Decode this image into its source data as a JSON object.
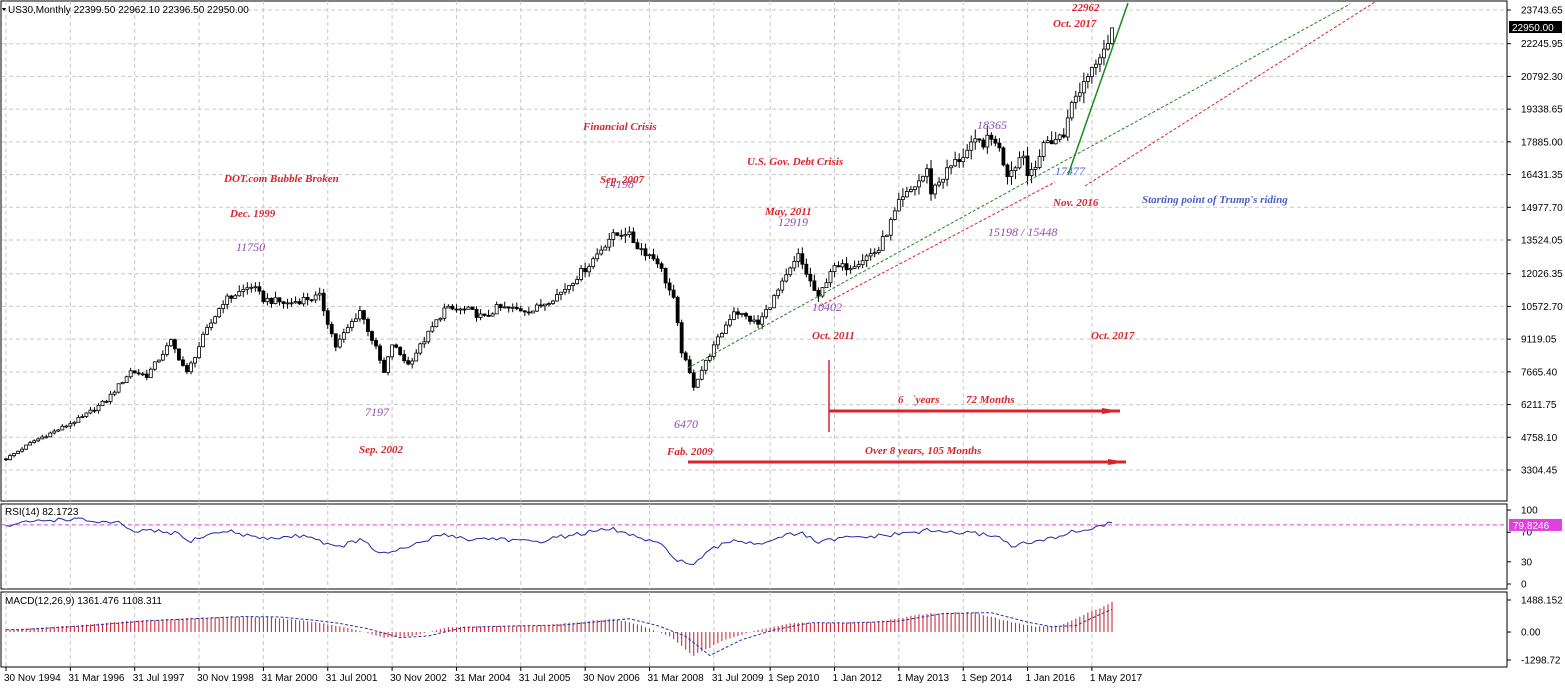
{
  "header": {
    "symbol_line": "US30,Monthly  22399.50 22962.10 22396.50 22950.00",
    "rsi_label": "RSI(14) 82.1723",
    "macd_label": "MACD(12,26,9) 1361.476 1108.311",
    "price_marker": "22950.00",
    "rsi_marker": "79.8246"
  },
  "colors": {
    "bull_candle": "#ffffff",
    "bear_candle": "#000000",
    "rsi_line": "#1f2aa8",
    "rsi_level": "#e040e0",
    "macd_hist": "#d22a3a",
    "macd_signal": "#2233aa",
    "annot_red": "#d9232d",
    "annot_purple": "#8e4bb0",
    "trend_green": "#1a8a1a",
    "trend_red": "#d9232d"
  },
  "chart_data": [
    {
      "type": "candlestick",
      "title": "US30,Monthly",
      "x_ticks": [
        "30 Nov 1994",
        "31 Mar 1996",
        "31 Jul 1997",
        "30 Nov 1998",
        "31 Mar 2000",
        "31 Jul 2001",
        "30 Nov 2002",
        "31 Mar 2004",
        "31 Jul 2005",
        "30 Nov 2006",
        "31 Mar 2008",
        "31 Jul 2009",
        "1 Sep 2010",
        "1 Jan 2012",
        "1 May 2013",
        "1 Sep 2014",
        "1 Jan 2016",
        "1 May 2017"
      ],
      "y_ticks": [
        "23743.65",
        "22245.95",
        "20792.30",
        "19338.65",
        "17885.00",
        "16431.35",
        "14977.70",
        "13524.05",
        "12026.35",
        "10572.70",
        "9119.05",
        "7665.40",
        "6211.75",
        "4758.10",
        "3304.45"
      ],
      "ylim": [
        3304.45,
        24100
      ],
      "x_range": [
        "1994-11",
        "2017-10"
      ],
      "last_price": 22950.0,
      "anchors": [
        [
          "1994-11",
          3800
        ],
        [
          "1995-06",
          4600
        ],
        [
          "1995-12",
          5100
        ],
        [
          "1996-06",
          5650
        ],
        [
          "1996-12",
          6400
        ],
        [
          "1997-06",
          7700
        ],
        [
          "1997-10",
          7500
        ],
        [
          "1998-04",
          9000
        ],
        [
          "1998-08",
          7600
        ],
        [
          "1998-12",
          9200
        ],
        [
          "1999-05",
          10800
        ],
        [
          "1999-12",
          11497
        ],
        [
          "2000-03",
          10900
        ],
        [
          "2000-09",
          10700
        ],
        [
          "2001-01",
          10900
        ],
        [
          "2001-05",
          11000
        ],
        [
          "2001-09",
          8800
        ],
        [
          "2002-03",
          10400
        ],
        [
          "2002-07",
          8700
        ],
        [
          "2002-09",
          7600
        ],
        [
          "2002-11",
          8900
        ],
        [
          "2003-03",
          7990
        ],
        [
          "2003-12",
          10450
        ],
        [
          "2004-06",
          10400
        ],
        [
          "2004-10",
          10050
        ],
        [
          "2005-01",
          10500
        ],
        [
          "2005-10",
          10400
        ],
        [
          "2006-05",
          11200
        ],
        [
          "2006-12",
          12450
        ],
        [
          "2007-05",
          13600
        ],
        [
          "2007-09",
          13900
        ],
        [
          "2007-12",
          13260
        ],
        [
          "2008-05",
          12600
        ],
        [
          "2008-09",
          10850
        ],
        [
          "2008-11",
          8600
        ],
        [
          "2009-02",
          7060
        ],
        [
          "2009-06",
          8450
        ],
        [
          "2009-12",
          10400
        ],
        [
          "2010-06",
          9780
        ],
        [
          "2010-12",
          11550
        ],
        [
          "2011-04",
          12800
        ],
        [
          "2011-09",
          10900
        ],
        [
          "2011-12",
          12200
        ],
        [
          "2012-05",
          12400
        ],
        [
          "2012-12",
          13100
        ],
        [
          "2013-05",
          15100
        ],
        [
          "2013-12",
          16570
        ],
        [
          "2014-01",
          15700
        ],
        [
          "2014-06",
          16800
        ],
        [
          "2014-12",
          17800
        ],
        [
          "2015-05",
          18000
        ],
        [
          "2015-08",
          16500
        ],
        [
          "2015-12",
          17400
        ],
        [
          "2016-01",
          16400
        ],
        [
          "2016-06",
          17900
        ],
        [
          "2016-10",
          18150
        ],
        [
          "2016-11",
          19150
        ],
        [
          "2017-01",
          19850
        ],
        [
          "2017-04",
          20900
        ],
        [
          "2017-07",
          21900
        ],
        [
          "2017-09",
          22400
        ],
        [
          "2017-10",
          22950
        ]
      ]
    },
    {
      "type": "line",
      "title": "RSI(14) 82.1723",
      "y_ticks": [
        "100",
        "70",
        "30",
        "0"
      ],
      "ylim": [
        0,
        100
      ],
      "level": 79.8246,
      "anchors": [
        [
          "1994-11",
          78
        ],
        [
          "1995-06",
          85
        ],
        [
          "1996-03",
          88
        ],
        [
          "1996-10",
          84
        ],
        [
          "1997-03",
          82
        ],
        [
          "1997-06",
          71
        ],
        [
          "1997-10",
          72
        ],
        [
          "1998-06",
          68
        ],
        [
          "1998-08",
          57
        ],
        [
          "1999-01",
          66
        ],
        [
          "1999-06",
          72
        ],
        [
          "2000-03",
          61
        ],
        [
          "2001-02",
          66
        ],
        [
          "2001-09",
          49
        ],
        [
          "2002-03",
          60
        ],
        [
          "2002-07",
          45
        ],
        [
          "2002-10",
          40
        ],
        [
          "2003-04",
          52
        ],
        [
          "2003-12",
          68
        ],
        [
          "2004-06",
          60
        ],
        [
          "2005-01",
          62
        ],
        [
          "2005-10",
          56
        ],
        [
          "2006-05",
          64
        ],
        [
          "2006-12",
          70
        ],
        [
          "2007-06",
          74
        ],
        [
          "2007-12",
          63
        ],
        [
          "2008-06",
          52
        ],
        [
          "2008-10",
          33
        ],
        [
          "2009-02",
          25
        ],
        [
          "2009-06",
          45
        ],
        [
          "2009-12",
          60
        ],
        [
          "2010-06",
          54
        ],
        [
          "2010-12",
          65
        ],
        [
          "2011-05",
          68
        ],
        [
          "2011-09",
          56
        ],
        [
          "2012-03",
          62
        ],
        [
          "2013-01",
          65
        ],
        [
          "2013-12",
          72
        ],
        [
          "2014-06",
          70
        ],
        [
          "2014-12",
          68
        ],
        [
          "2015-05",
          66
        ],
        [
          "2015-09",
          52
        ],
        [
          "2016-01",
          55
        ],
        [
          "2016-06",
          60
        ],
        [
          "2016-11",
          69
        ],
        [
          "2017-04",
          74
        ],
        [
          "2017-10",
          82
        ]
      ]
    },
    {
      "type": "histogram+line",
      "title": "MACD(12,26,9) 1361.476 1108.311",
      "y_ticks": [
        "1488.152",
        "0.00",
        "-1298.72"
      ],
      "ylim": [
        -1298.72,
        1488.152
      ],
      "anchors": [
        [
          "1994-11",
          110
        ],
        [
          "1996-03",
          290
        ],
        [
          "1997-06",
          520
        ],
        [
          "1998-06",
          620
        ],
        [
          "1999-06",
          720
        ],
        [
          "2000-03",
          700
        ],
        [
          "2000-12",
          540
        ],
        [
          "2001-06",
          400
        ],
        [
          "2002-01",
          150
        ],
        [
          "2002-09",
          -260
        ],
        [
          "2003-04",
          -180
        ],
        [
          "2004-01",
          220
        ],
        [
          "2005-01",
          280
        ],
        [
          "2006-01",
          320
        ],
        [
          "2007-06",
          620
        ],
        [
          "2008-01",
          300
        ],
        [
          "2008-08",
          -200
        ],
        [
          "2009-02",
          -1090
        ],
        [
          "2009-10",
          -350
        ],
        [
          "2010-06",
          100
        ],
        [
          "2011-03",
          430
        ],
        [
          "2012-01",
          420
        ],
        [
          "2013-01",
          510
        ],
        [
          "2013-12",
          860
        ],
        [
          "2014-12",
          900
        ],
        [
          "2015-09",
          460
        ],
        [
          "2016-03",
          250
        ],
        [
          "2016-09",
          300
        ],
        [
          "2017-03",
          820
        ],
        [
          "2017-10",
          1361
        ]
      ]
    }
  ],
  "annotations": {
    "red": [
      {
        "text": "DOT.com Bubble Broken",
        "pos": [
          224,
          182
        ]
      },
      {
        "text": "Dec. 1999",
        "pos": [
          230,
          217
        ]
      },
      {
        "text": "Sep. 2002",
        "pos": [
          359,
          453
        ]
      },
      {
        "text": "Financial Crisis",
        "pos": [
          583,
          130
        ]
      },
      {
        "text": "Sep.  2007",
        "pos": [
          600,
          183
        ]
      },
      {
        "text": "U.S. Gov. Debt Crisis",
        "pos": [
          747,
          165
        ]
      },
      {
        "text": "May, 2011",
        "pos": [
          765,
          215
        ]
      },
      {
        "text": "Fab. 2009",
        "pos": [
          667,
          455
        ]
      },
      {
        "text": "Oct. 2011",
        "pos": [
          812,
          339
        ]
      },
      {
        "text": "Oct. 2017",
        "pos": [
          1091,
          339
        ]
      },
      {
        "text": "Oct. 2017",
        "pos": [
          1053,
          27
        ]
      },
      {
        "text": "22962",
        "pos": [
          1072,
          11
        ]
      },
      {
        "text": "Nov. 2016",
        "pos": [
          1053,
          206
        ]
      },
      {
        "text": "6",
        "pos": [
          898,
          403
        ]
      },
      {
        "text": "`years",
        "pos": [
          912,
          403
        ]
      },
      {
        "text": "72 Months",
        "pos": [
          966,
          403
        ]
      },
      {
        "text": "Over 8 years, 105 Months",
        "pos": [
          865,
          454
        ]
      }
    ],
    "purple": [
      {
        "text": "11750",
        "pos": [
          236,
          251
        ]
      },
      {
        "text": "7197",
        "pos": [
          365,
          416
        ]
      },
      {
        "text": "14198",
        "pos": [
          604,
          188
        ]
      },
      {
        "text": "12919",
        "pos": [
          778,
          226
        ]
      },
      {
        "text": "6470",
        "pos": [
          674,
          428
        ]
      },
      {
        "text": "10402",
        "pos": [
          812,
          311
        ]
      },
      {
        "text": "18365",
        "pos": [
          977,
          129
        ]
      },
      {
        "text": "15198 / 15448",
        "pos": [
          988,
          236
        ]
      }
    ],
    "blue": [
      {
        "text": "Starting point of Trump's riding",
        "pos": [
          1142,
          203
        ]
      },
      {
        "text": "17477",
        "pos": [
          1055,
          175
        ]
      }
    ]
  }
}
